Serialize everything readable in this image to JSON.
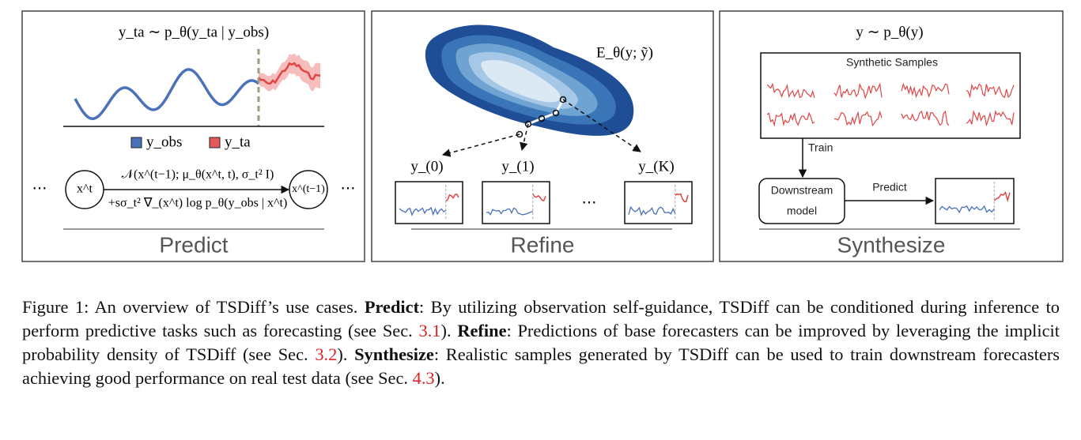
{
  "panels": [
    {
      "title": "Predict",
      "formula": "y_ta ∼ p_θ(y_ta | y_obs)",
      "legend": [
        "y_obs",
        "y_ta"
      ],
      "node_left": "x^t",
      "node_right": "x^(t−1)",
      "ellipsis": "⋯",
      "edge_top": "𝒩(x^(t−1); μ_θ(x^t, t), σ_t² I)",
      "edge_bottom": "+sσ_t² ∇_(x^t) log p_θ(y_obs | x^t)"
    },
    {
      "title": "Refine",
      "formula": "E_θ(y; ỹ)",
      "labels": [
        "y_(0)",
        "y_(1)",
        "y_(K)"
      ],
      "ellipsis": "⋯"
    },
    {
      "title": "Synthesize",
      "formula": "y ∼ p_θ(y)",
      "samples_label": "Synthetic Samples",
      "train": "Train",
      "downstream": [
        "Downstream",
        "model"
      ],
      "predict": "Predict"
    }
  ],
  "caption": [
    {
      "text": "Figure 1: An overview of TSDiff’s use cases. ",
      "style": "plain"
    },
    {
      "text": "Predict",
      "style": "bold"
    },
    {
      "text": ": By utilizing observation self-guidance, TSDiff can be conditioned during inference to perform predictive tasks such as forecasting (see Sec. ",
      "style": "plain"
    },
    {
      "text": "3.1",
      "style": "ref"
    },
    {
      "text": "). ",
      "style": "plain"
    },
    {
      "text": "Refine",
      "style": "bold"
    },
    {
      "text": ": Predictions of base forecasters can be improved by leveraging the implicit probability density of TSDiff (see Sec. ",
      "style": "plain"
    },
    {
      "text": "3.2",
      "style": "ref"
    },
    {
      "text": "). ",
      "style": "plain"
    },
    {
      "text": "Synthesize",
      "style": "bold"
    },
    {
      "text": ": Realistic samples generated by TSDiff can be used to train downstream forecasters achieving good performance on real test data (see Sec. ",
      "style": "plain"
    },
    {
      "text": "4.3",
      "style": "ref"
    },
    {
      "text": ").",
      "style": "plain"
    }
  ]
}
